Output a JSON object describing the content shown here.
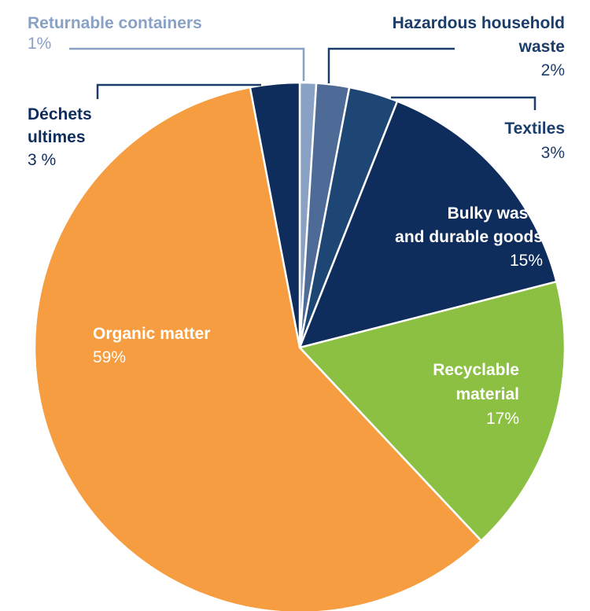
{
  "chart_data": {
    "type": "pie",
    "slices": [
      {
        "label": "Returnable containers",
        "label_lines": [
          "Returnable containers"
        ],
        "value": 1,
        "value_text": "1%",
        "color": "#8aa1c6",
        "label_color": "#8aa1c6"
      },
      {
        "label": "Hazardous household waste",
        "label_lines": [
          "Hazardous household",
          "waste"
        ],
        "value": 2,
        "value_text": "2%",
        "color": "#4d6b96",
        "label_color": "#1b3d6b"
      },
      {
        "label": "Textiles",
        "label_lines": [
          "Textiles"
        ],
        "value": 3,
        "value_text": "3%",
        "color": "#1e4675",
        "label_color": "#1b3d6b"
      },
      {
        "label": "Bulky waste and durable goods",
        "label_lines": [
          "Bulky waste",
          "and durable goods"
        ],
        "value": 15,
        "value_text": "15%",
        "color": "#0f2d5c",
        "label_color": "#ffffff"
      },
      {
        "label": "Recyclable material",
        "label_lines": [
          "Recyclable",
          "material"
        ],
        "value": 17,
        "value_text": "17%",
        "color": "#8cc043",
        "label_color": "#ffffff"
      },
      {
        "label": "Organic matter",
        "label_lines": [
          "Organic matter"
        ],
        "value": 59,
        "value_text": "59%",
        "color": "#f59d40",
        "label_color": "#ffffff"
      },
      {
        "label": "Déchets ultimes",
        "label_lines": [
          "Déchets",
          "ultimes"
        ],
        "value": 3,
        "value_text": "3 %",
        "color": "#0f2d5c",
        "label_color": "#0f2d5c"
      }
    ],
    "start_angle_deg": 0,
    "direction": "clockwise",
    "colors": {
      "leader_line": "#1b3d6b",
      "slice_border": "#ffffff"
    }
  }
}
